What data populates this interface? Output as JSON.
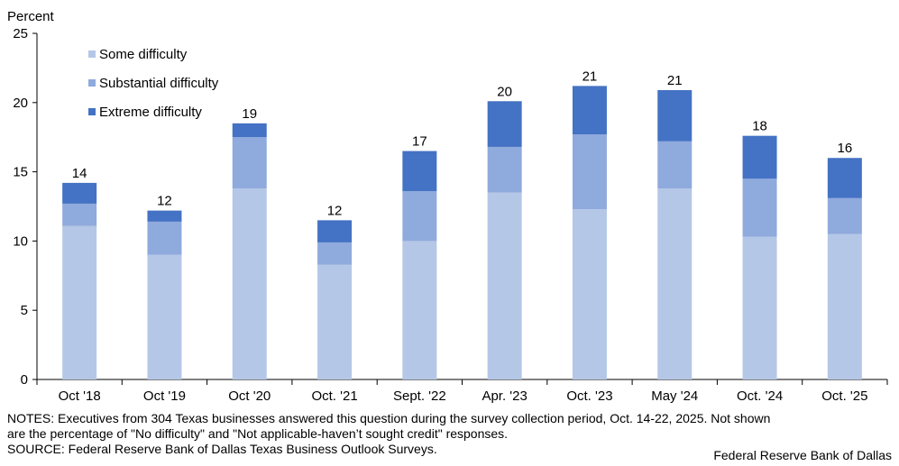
{
  "chart_data": {
    "type": "bar",
    "stacked": true,
    "ylabel": "Percent",
    "ylim": [
      0,
      25
    ],
    "yticks": [
      0,
      5,
      10,
      15,
      20,
      25
    ],
    "grid": false,
    "legend_position": "top-left",
    "categories": [
      "Oct '18",
      "Oct '19",
      "Oct '20",
      "Oct. '21",
      "Sept. '22",
      "Apr. '23",
      "Oct. '23",
      "May '24",
      "Oct. '24",
      "Oct. '25"
    ],
    "series": [
      {
        "name": "Some difficulty",
        "color": "#b4c7e7",
        "values": [
          11.1,
          9.0,
          13.8,
          8.3,
          10.0,
          13.5,
          12.3,
          13.8,
          10.3,
          10.5
        ]
      },
      {
        "name": "Substantial difficulty",
        "color": "#8faadc",
        "values": [
          1.6,
          2.4,
          3.7,
          1.6,
          3.6,
          3.3,
          5.4,
          3.4,
          4.2,
          2.6
        ]
      },
      {
        "name": "Extreme difficulty",
        "color": "#4472c4",
        "values": [
          1.5,
          0.8,
          1.0,
          1.6,
          2.9,
          3.3,
          3.5,
          3.7,
          3.1,
          2.9
        ]
      }
    ],
    "total_labels": [
      "14",
      "12",
      "19",
      "12",
      "17",
      "20",
      "21",
      "21",
      "18",
      "16"
    ]
  },
  "footer": {
    "notes_line1": "NOTES: Executives from 304 Texas businesses answered this question during the survey collection period, Oct. 14-22, 2025. Not shown",
    "notes_line2": "are the percentage of \"No difficulty\" and \"Not applicable-haven’t sought credit\" responses.",
    "source": "SOURCE: Federal Reserve Bank of Dallas Texas Business Outlook Surveys.",
    "credit": "Federal Reserve Bank of Dallas"
  }
}
